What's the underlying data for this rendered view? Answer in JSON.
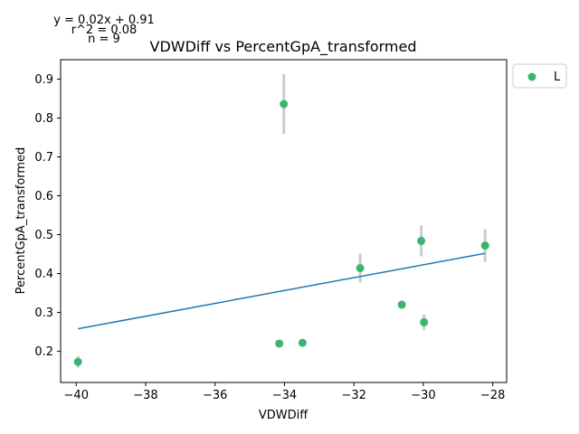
{
  "chart_data": {
    "type": "scatter",
    "title": "VDWDiff vs PercentGpA_transformed",
    "xlabel": "VDWDiff",
    "ylabel": "PercentGpA_transformed",
    "xlim": [
      -40.45,
      -27.6
    ],
    "ylim": [
      0.12,
      0.95
    ],
    "xticks": [
      -40,
      -38,
      -36,
      -34,
      -32,
      -30,
      -28
    ],
    "yticks": [
      0.2,
      0.3,
      0.4,
      0.5,
      0.6,
      0.7,
      0.8,
      0.9
    ],
    "grid": false,
    "legend": {
      "placement": "outside-top-right",
      "entries": [
        "L"
      ]
    },
    "series": [
      {
        "name": "L",
        "color": "#3cb371",
        "points": [
          {
            "x": -39.95,
            "y": 0.173,
            "err": 0.015
          },
          {
            "x": -34.02,
            "y": 0.836,
            "err": 0.077
          },
          {
            "x": -34.15,
            "y": 0.22,
            "err": 0.0
          },
          {
            "x": -33.48,
            "y": 0.222,
            "err": 0.0
          },
          {
            "x": -31.82,
            "y": 0.414,
            "err": 0.037
          },
          {
            "x": -30.62,
            "y": 0.32,
            "err": 0.0
          },
          {
            "x": -30.06,
            "y": 0.484,
            "err": 0.04
          },
          {
            "x": -29.98,
            "y": 0.275,
            "err": 0.02
          },
          {
            "x": -28.22,
            "y": 0.472,
            "err": 0.042
          }
        ]
      }
    ],
    "error_bar_color": "#cccccc",
    "fit_line": {
      "x": [
        -39.95,
        -28.22
      ],
      "y": [
        0.258,
        0.452
      ],
      "color": "#1f77b4"
    },
    "annotations": [
      "y = 0.02x + 0.91",
      "r^2 = 0.08",
      "n = 9"
    ]
  }
}
